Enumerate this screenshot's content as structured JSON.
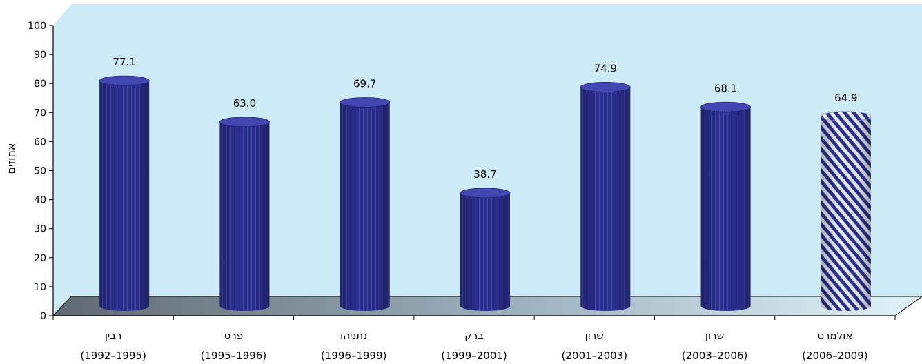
{
  "chart_data": {
    "type": "bar",
    "ylabel": "אחוזים",
    "ylim": [
      0,
      100
    ],
    "yticks": [
      0,
      10,
      20,
      30,
      40,
      50,
      60,
      70,
      80,
      90,
      100
    ],
    "categories": [
      {
        "name": "רבין",
        "period": "(1992–1995)"
      },
      {
        "name": "פרס",
        "period": "(1995–1996)"
      },
      {
        "name": "נתניהו",
        "period": "(1996–1999)"
      },
      {
        "name": "ברק",
        "period": "(1999–2001)"
      },
      {
        "name": "שרון",
        "period": "(2001–2003)"
      },
      {
        "name": "שרון",
        "period": "(2003–2006)"
      },
      {
        "name": "אולמרט",
        "period": "(2006–2009)"
      }
    ],
    "values": [
      77.1,
      63.0,
      69.7,
      38.7,
      74.9,
      68.1,
      64.9
    ],
    "value_labels": [
      "77.1",
      "63.0",
      "69.7",
      "38.7",
      "74.9",
      "68.1",
      "64.9"
    ],
    "bar_style": [
      "solid",
      "solid",
      "solid",
      "solid",
      "solid",
      "solid",
      "hatched"
    ],
    "colors": {
      "bar": "#2b2f8f",
      "bar_dark": "#1d2070",
      "bar_light": "#4347b0",
      "wall": "#cdeaf7",
      "floor_dark": "#5f6a72",
      "floor_light": "#d9eef8",
      "hatch": "#2b2f8f",
      "hatch_bg": "#dfe8f0"
    }
  }
}
